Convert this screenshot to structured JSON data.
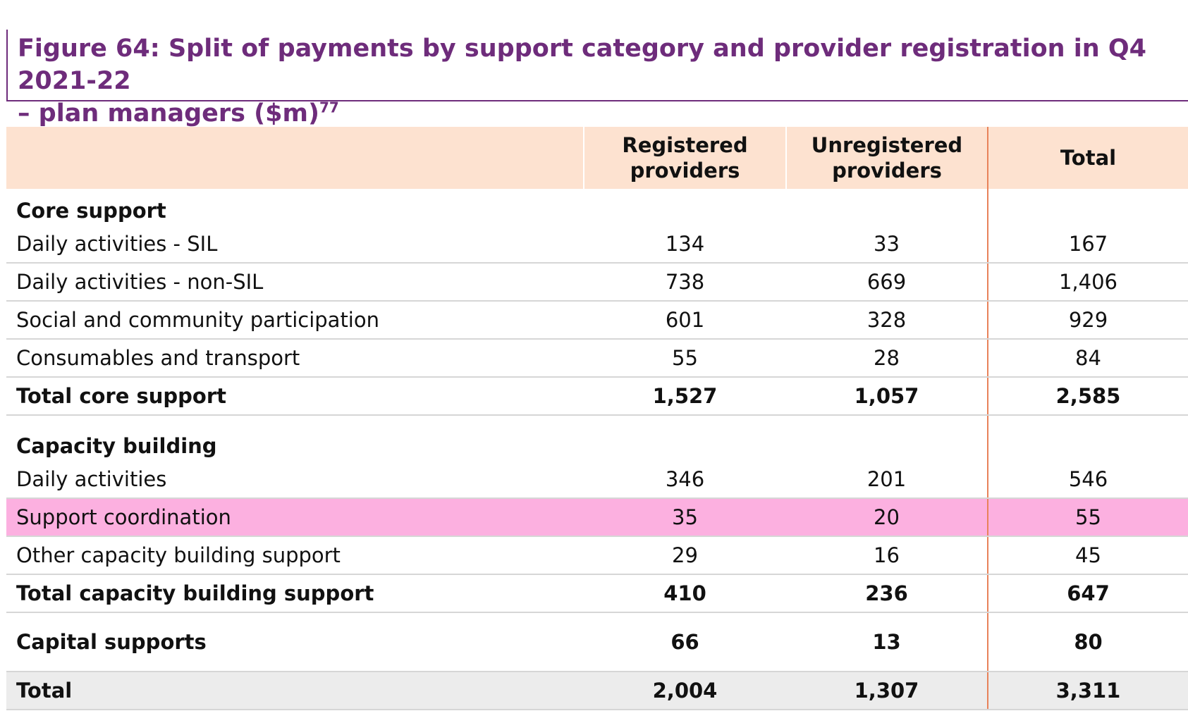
{
  "figure": {
    "title_line1": "Figure 64: Split of payments by support category and provider registration in Q4 2021-22",
    "title_line2": "– plan managers ($m)",
    "footnote_ref": "77"
  },
  "table": {
    "headers": [
      "",
      "Registered\nproviders",
      "Unregistered\nproviders",
      "Total"
    ],
    "core_heading": "Core support",
    "core_rows": [
      {
        "label": "Daily activities - SIL",
        "registered": "134",
        "unregistered": "33",
        "total": "167"
      },
      {
        "label": "Daily activities - non-SIL",
        "registered": "738",
        "unregistered": "669",
        "total": "1,406"
      },
      {
        "label": "Social and community participation",
        "registered": "601",
        "unregistered": "328",
        "total": "929"
      },
      {
        "label": "Consumables and transport",
        "registered": "55",
        "unregistered": "28",
        "total": "84"
      }
    ],
    "core_total": {
      "label": "Total core support",
      "registered": "1,527",
      "unregistered": "1,057",
      "total": "2,585"
    },
    "capacity_heading": "Capacity building",
    "capacity_rows": [
      {
        "label": "Daily activities",
        "registered": "346",
        "unregistered": "201",
        "total": "546"
      },
      {
        "label": "Support coordination",
        "registered": "35",
        "unregistered": "20",
        "total": "55"
      },
      {
        "label": "Other capacity building support",
        "registered": "29",
        "unregistered": "16",
        "total": "45"
      }
    ],
    "capacity_total": {
      "label": "Total capacity building support",
      "registered": "410",
      "unregistered": "236",
      "total": "647"
    },
    "capital": {
      "label": "Capital supports",
      "registered": "66",
      "unregistered": "13",
      "total": "80"
    },
    "grand_total": {
      "label": "Total",
      "registered": "2,004",
      "unregistered": "1,307",
      "total": "3,311"
    }
  },
  "colors": {
    "title": "#6e2c7b",
    "header_bg": "#fde2d0",
    "highlight": "#fcb0e0",
    "divider": "#e8825a",
    "total_bg": "#ececec"
  }
}
